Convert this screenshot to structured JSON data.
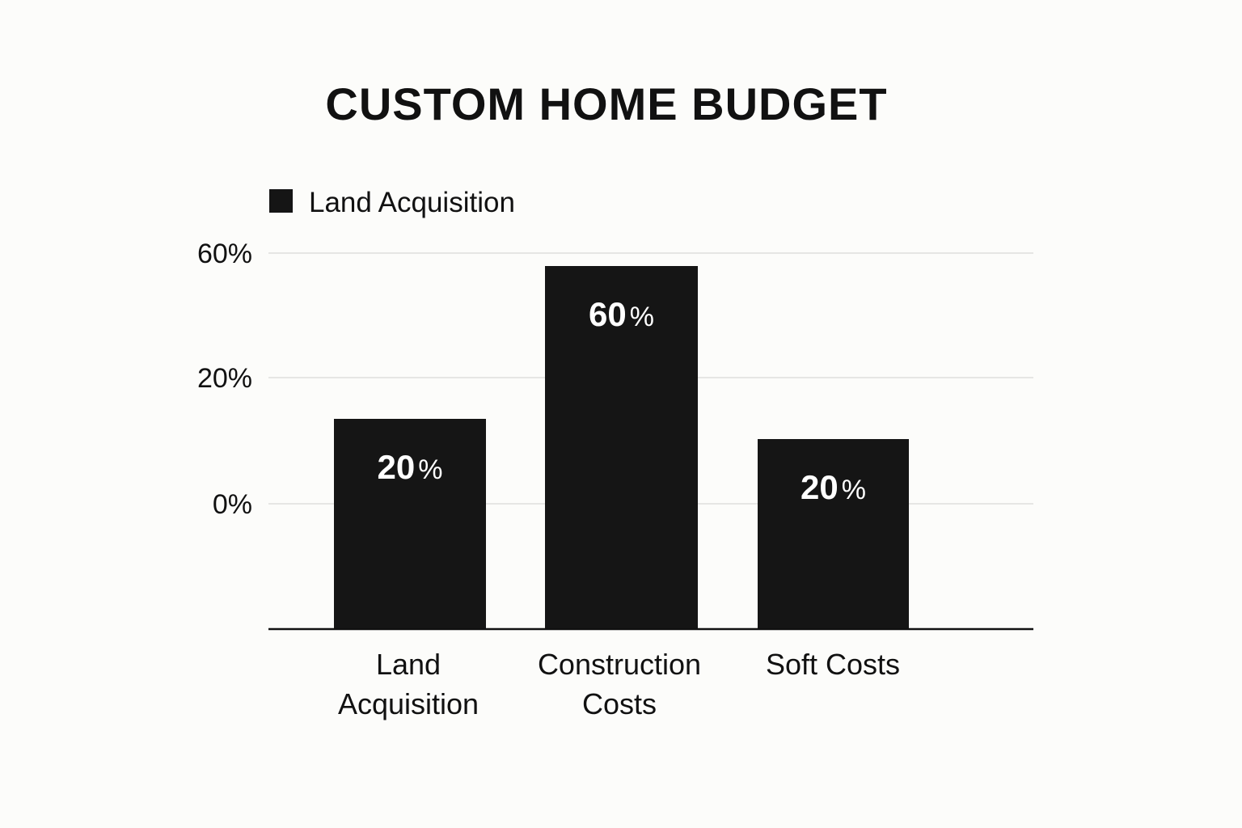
{
  "chart_data": {
    "type": "bar",
    "title": "CUSTOM HOME BUDGET",
    "legend": {
      "position": "top-left",
      "entries": [
        "Land Acquisition"
      ]
    },
    "categories": [
      [
        "Land",
        "Acquisition"
      ],
      [
        "Construction",
        "Costs"
      ],
      [
        "Soft Costs"
      ]
    ],
    "series": [
      {
        "name": "Land Acquisition",
        "values": [
          20,
          60,
          20
        ],
        "data_labels": [
          "20",
          "60",
          "20"
        ],
        "color": "#151515"
      }
    ],
    "y_tick_labels": [
      "60%",
      "20%",
      "0%"
    ],
    "label_suffix": "%",
    "grid": true,
    "colors": {
      "bar": "#151515",
      "grid": "#e6e6e4",
      "background": "#fcfcfa",
      "label": "#ffffff"
    }
  }
}
